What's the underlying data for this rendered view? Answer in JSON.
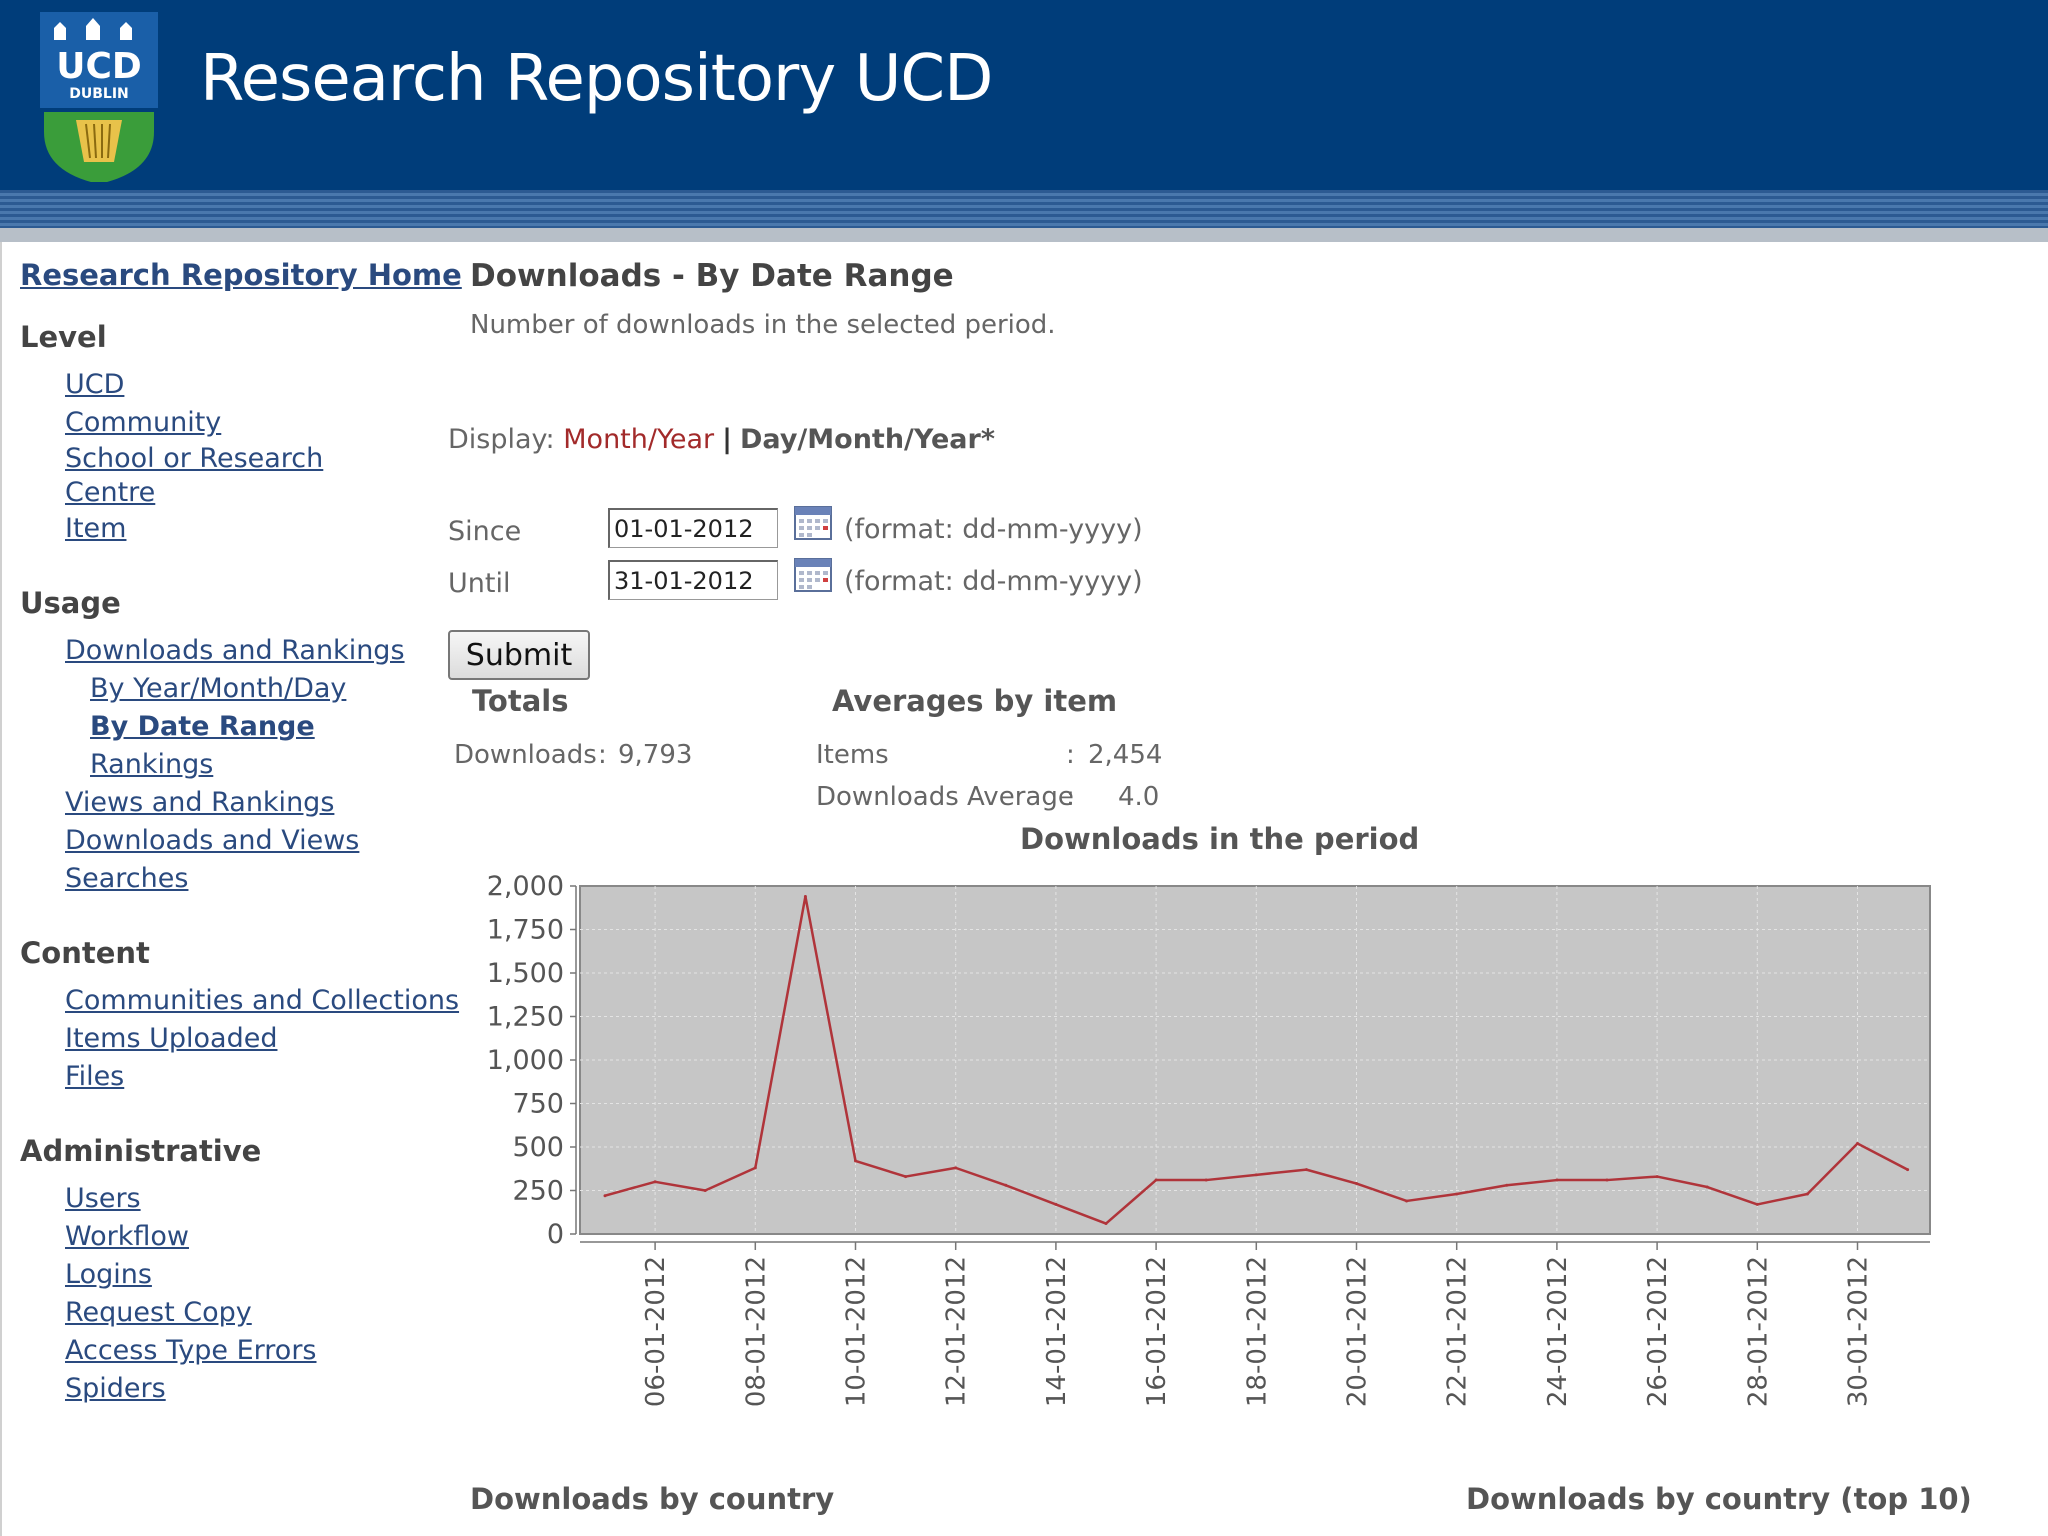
{
  "header": {
    "title": "Research Repository UCD",
    "logo_text_top": "UCD",
    "logo_text_bottom": "DUBLIN"
  },
  "sidebar": {
    "home_link": "Research Repository Home",
    "sections": [
      {
        "heading": "Level",
        "items": [
          "UCD",
          "Community",
          "School or Research Centre",
          "Item"
        ]
      },
      {
        "heading": "Usage",
        "items": [
          "Downloads and Rankings",
          "By Year/Month/Day",
          "By Date Range",
          "Rankings",
          "Views and Rankings",
          "Downloads and Views",
          "Searches"
        ]
      },
      {
        "heading": "Content",
        "items": [
          "Communities and Collections",
          "Items Uploaded",
          "Files"
        ]
      },
      {
        "heading": "Administrative",
        "items": [
          "Users",
          "Workflow",
          "Logins",
          "Request Copy",
          "Access Type Errors",
          "Spiders"
        ]
      }
    ]
  },
  "main": {
    "title": "Downloads - By Date Range",
    "subtitle": "Number of downloads in the selected period.",
    "display": {
      "label": "Display:",
      "option_month_year": "Month/Year",
      "separator": "|",
      "option_day_month_year": "Day/Month/Year*"
    },
    "form": {
      "since_label": "Since",
      "since_value": "01-01-2012",
      "until_label": "Until",
      "until_value": "31-01-2012",
      "format_hint": "(format: dd-mm-yyyy)",
      "submit_label": "Submit"
    },
    "totals": {
      "heading": "Totals",
      "downloads_label": "Downloads",
      "downloads_sep": ":",
      "downloads_value": "9,793"
    },
    "averages": {
      "heading": "Averages by item",
      "items_label": "Items",
      "items_sep": ":",
      "items_value": "2,454",
      "avg_label": "Downloads Average",
      "avg_sep": ":",
      "avg_value": "4.0"
    },
    "bottom_left_heading": "Downloads by country",
    "bottom_right_heading": "Downloads by country (top 10)"
  },
  "chart_data": {
    "type": "line",
    "title": "Downloads in the period",
    "xlabel": "",
    "ylabel": "",
    "ylim": [
      0,
      2000
    ],
    "yticks": [
      0,
      250,
      500,
      750,
      1000,
      1250,
      1500,
      1750,
      2000
    ],
    "ytick_labels": [
      "0",
      "250",
      "500",
      "750",
      "1,000",
      "1,250",
      "1,500",
      "1,750",
      "2,000"
    ],
    "x": [
      "05-01-2012",
      "06-01-2012",
      "07-01-2012",
      "08-01-2012",
      "09-01-2012",
      "10-01-2012",
      "11-01-2012",
      "12-01-2012",
      "13-01-2012",
      "14-01-2012",
      "15-01-2012",
      "16-01-2012",
      "17-01-2012",
      "18-01-2012",
      "19-01-2012",
      "20-01-2012",
      "21-01-2012",
      "22-01-2012",
      "23-01-2012",
      "24-01-2012",
      "25-01-2012",
      "26-01-2012",
      "27-01-2012",
      "28-01-2012",
      "29-01-2012",
      "30-01-2012",
      "31-01-2012"
    ],
    "xtick_labels": [
      "06-01-2012",
      "08-01-2012",
      "10-01-2012",
      "12-01-2012",
      "14-01-2012",
      "16-01-2012",
      "18-01-2012",
      "20-01-2012",
      "22-01-2012",
      "24-01-2012",
      "26-01-2012",
      "28-01-2012",
      "30-01-2012"
    ],
    "series": [
      {
        "values": [
          220,
          300,
          250,
          380,
          1940,
          420,
          330,
          380,
          280,
          170,
          60,
          310,
          310,
          340,
          370,
          290,
          190,
          230,
          280,
          310,
          310,
          330,
          270,
          170,
          230,
          520,
          370
        ],
        "color": "#b0343a"
      }
    ],
    "plot_bg": "#c6c6c6",
    "grid": true,
    "legend": "none"
  }
}
